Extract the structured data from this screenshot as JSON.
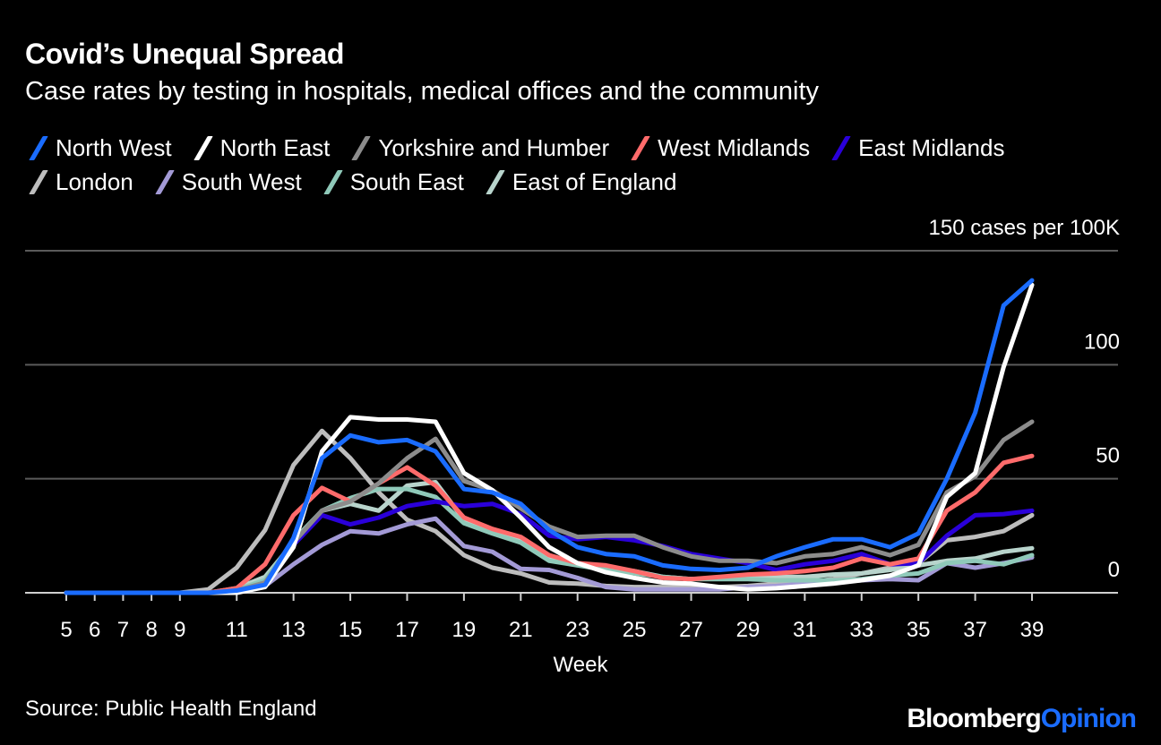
{
  "title": "Covid’s Unequal Spread",
  "subtitle": "Case rates by testing in hospitals, medical offices and the community",
  "source": "Source: Public Health England",
  "logo": {
    "part1": "Bloomberg",
    "part2": "Opinion"
  },
  "chart_data": {
    "type": "line",
    "title": "Covid’s Unequal Spread",
    "xlabel": "Week",
    "ylabel": "cases per 100K",
    "ylim": [
      0,
      150
    ],
    "xlim": [
      5,
      39
    ],
    "grid": true,
    "legend_placement": "top",
    "y_ticks": [
      {
        "value": 0,
        "label": "0"
      },
      {
        "value": 50,
        "label": "50"
      },
      {
        "value": 100,
        "label": "100"
      },
      {
        "value": 150,
        "label": "150 cases per 100K"
      }
    ],
    "x_ticks": [
      5,
      6,
      7,
      8,
      9,
      11,
      13,
      15,
      17,
      19,
      21,
      23,
      25,
      27,
      29,
      31,
      33,
      35,
      37,
      39
    ],
    "x": [
      5,
      6,
      7,
      8,
      9,
      10,
      11,
      12,
      13,
      14,
      15,
      16,
      17,
      18,
      19,
      20,
      21,
      22,
      23,
      24,
      25,
      26,
      27,
      28,
      29,
      30,
      31,
      32,
      33,
      34,
      35,
      36,
      37,
      38,
      39
    ],
    "series": [
      {
        "name": "London",
        "color": "#bdbdbd",
        "values": [
          0,
          0,
          0,
          0,
          0,
          1.5,
          11,
          27.5,
          56,
          71,
          59,
          44,
          32,
          27,
          16.5,
          11,
          8.5,
          4.5,
          4,
          3,
          2.5,
          2.5,
          2.5,
          2.5,
          3,
          4,
          4.5,
          6,
          8.5,
          11,
          13,
          23,
          24.5,
          27,
          34
        ]
      },
      {
        "name": "South West",
        "color": "#a39ad6",
        "values": [
          0,
          0,
          0,
          0,
          0,
          0,
          0.5,
          3,
          12.5,
          21,
          27,
          26,
          30,
          32.5,
          20.5,
          18,
          10.5,
          10,
          6.5,
          2.5,
          1.5,
          1.5,
          1.5,
          1.5,
          2.5,
          3,
          4,
          4.5,
          5.5,
          6,
          5.5,
          13,
          11,
          13,
          15.5
        ]
      },
      {
        "name": "East of England",
        "color": "#b8d4cc",
        "values": [
          0,
          0,
          0,
          0,
          0,
          0,
          2,
          7,
          22,
          36,
          39,
          36,
          47,
          48.5,
          32,
          27.5,
          23,
          16,
          12.5,
          11,
          9.5,
          7,
          6,
          6.5,
          7,
          7,
          7,
          8,
          8.5,
          10,
          12,
          14,
          15,
          18,
          19.5
        ]
      },
      {
        "name": "South East",
        "color": "#8fc9b9",
        "values": [
          0,
          0,
          0,
          0,
          0,
          0,
          1.5,
          5.5,
          23,
          36,
          41.5,
          45.5,
          45.5,
          42,
          30.5,
          26,
          22,
          14,
          12,
          10,
          8.5,
          7,
          6,
          6,
          6,
          5.5,
          5.5,
          5.5,
          6,
          7.5,
          8.5,
          13,
          14,
          12.5,
          16.5
        ]
      },
      {
        "name": "East Midlands",
        "color": "#2a00d9",
        "values": [
          0,
          0,
          0,
          0,
          0,
          0,
          1,
          4,
          21,
          34,
          30,
          33,
          38,
          40,
          38,
          39,
          34.5,
          25,
          23.5,
          24.5,
          23,
          20.5,
          17,
          15,
          13,
          10,
          12.5,
          14,
          17,
          12.5,
          13,
          25,
          34,
          34.5,
          36
        ]
      },
      {
        "name": "West Midlands",
        "color": "#ff6b6b",
        "values": [
          0,
          0,
          0,
          0,
          0,
          0,
          2,
          12.5,
          34,
          46,
          40,
          48,
          55,
          47,
          33,
          28,
          24.5,
          16.5,
          13,
          12,
          9.5,
          6.5,
          6,
          7,
          8,
          8.5,
          9.5,
          11,
          15,
          12.5,
          15,
          36,
          44,
          57,
          60
        ]
      },
      {
        "name": "Yorkshire and Humber",
        "color": "#8c8c8c",
        "values": [
          0,
          0,
          0,
          0,
          0,
          0,
          1,
          4.5,
          22,
          36,
          40,
          48,
          59,
          67.5,
          49,
          45,
          37,
          29,
          24.5,
          25,
          25,
          20,
          16,
          14,
          14,
          13,
          16,
          17,
          20,
          16.5,
          21,
          44,
          51,
          67,
          75
        ]
      },
      {
        "name": "North East",
        "color": "#ffffff",
        "values": [
          0,
          0,
          0,
          0,
          0,
          0,
          0,
          2.5,
          20,
          62,
          77,
          76,
          76,
          75,
          52.5,
          45,
          33,
          20,
          13,
          9,
          6.5,
          4.5,
          4,
          2.5,
          1.5,
          2,
          3,
          4,
          5.5,
          7.5,
          12,
          42,
          52.5,
          99,
          135
        ]
      },
      {
        "name": "North West",
        "color": "#1a6cff",
        "values": [
          0,
          0,
          0,
          0,
          0,
          0,
          1,
          3.5,
          24,
          59,
          69,
          66,
          67,
          62,
          45.5,
          44,
          39,
          27.5,
          20,
          17,
          16,
          12,
          10.5,
          10,
          11,
          16,
          20,
          23.5,
          23.5,
          20,
          26,
          50,
          79,
          126,
          137
        ]
      }
    ],
    "legend_order": [
      "North West",
      "North East",
      "Yorkshire and Humber",
      "West Midlands",
      "East Midlands",
      "London",
      "South West",
      "South East",
      "East of England"
    ]
  }
}
